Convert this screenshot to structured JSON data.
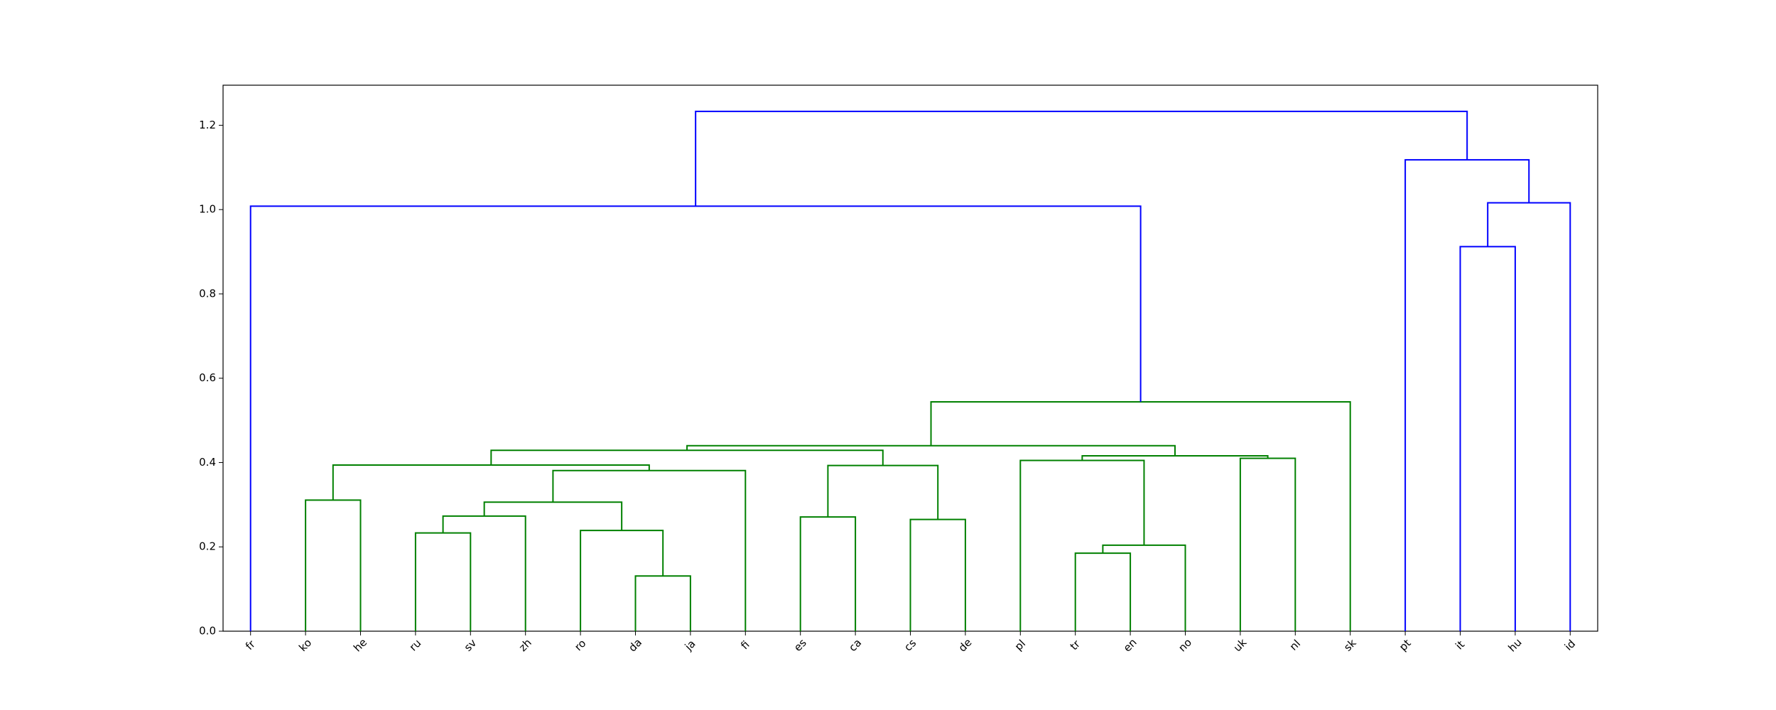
{
  "chart_data": {
    "type": "dendrogram",
    "ylim": [
      0,
      1.295
    ],
    "yticks": [
      {
        "value": 0,
        "label": "0.0"
      },
      {
        "value": 0.2,
        "label": "0.2"
      },
      {
        "value": 0.4,
        "label": "0.4"
      },
      {
        "value": 0.6,
        "label": "0.6"
      },
      {
        "value": 0.8,
        "label": "0.8"
      },
      {
        "value": 1.0,
        "label": "1.0"
      },
      {
        "value": 1.2,
        "label": "1.2"
      }
    ],
    "tree": {
      "height": 1.233,
      "color": "#0000ff",
      "children": [
        {
          "height": 1.008,
          "color": "#0000ff",
          "children": [
            "fr",
            {
              "height": 0.544,
              "color": "#008000",
              "children": [
                {
                  "height": 0.44,
                  "color": "#008000",
                  "children": [
                    {
                      "height": 0.429,
                      "color": "#008000",
                      "children": [
                        {
                          "height": 0.394,
                          "color": "#008000",
                          "children": [
                            {
                              "height": 0.311,
                              "color": "#008000",
                              "children": [
                                "ko",
                                "he"
                              ]
                            },
                            {
                              "height": 0.381,
                              "color": "#008000",
                              "children": [
                                {
                                  "height": 0.306,
                                  "color": "#008000",
                                  "children": [
                                    {
                                      "height": 0.273,
                                      "color": "#008000",
                                      "children": [
                                        {
                                          "height": 0.233,
                                          "color": "#008000",
                                          "children": [
                                            "ru",
                                            "sv"
                                          ]
                                        },
                                        "zh"
                                      ]
                                    },
                                    {
                                      "height": 0.239,
                                      "color": "#008000",
                                      "children": [
                                        "ro",
                                        {
                                          "height": 0.131,
                                          "color": "#008000",
                                          "children": [
                                            "da",
                                            "ja"
                                          ]
                                        }
                                      ]
                                    }
                                  ]
                                },
                                "fi"
                              ]
                            }
                          ]
                        },
                        {
                          "height": 0.393,
                          "color": "#008000",
                          "children": [
                            {
                              "height": 0.271,
                              "color": "#008000",
                              "children": [
                                "es",
                                "ca"
                              ]
                            },
                            {
                              "height": 0.265,
                              "color": "#008000",
                              "children": [
                                "cs",
                                "de"
                              ]
                            }
                          ]
                        }
                      ]
                    },
                    {
                      "height": 0.416,
                      "color": "#008000",
                      "children": [
                        {
                          "height": 0.405,
                          "color": "#008000",
                          "children": [
                            "pl",
                            {
                              "height": 0.204,
                              "color": "#008000",
                              "children": [
                                {
                                  "height": 0.185,
                                  "color": "#008000",
                                  "children": [
                                    "tr",
                                    "en"
                                  ]
                                },
                                "no"
                              ]
                            }
                          ]
                        },
                        {
                          "height": 0.41,
                          "color": "#008000",
                          "children": [
                            "uk",
                            "nl"
                          ]
                        }
                      ]
                    }
                  ]
                },
                "sk"
              ]
            }
          ]
        },
        {
          "height": 1.118,
          "color": "#0000ff",
          "children": [
            "pt",
            {
              "height": 1.016,
              "color": "#0000ff",
              "children": [
                {
                  "height": 0.912,
                  "color": "#0000ff",
                  "children": [
                    "it",
                    "hu"
                  ]
                },
                "id"
              ]
            }
          ]
        }
      ]
    }
  }
}
